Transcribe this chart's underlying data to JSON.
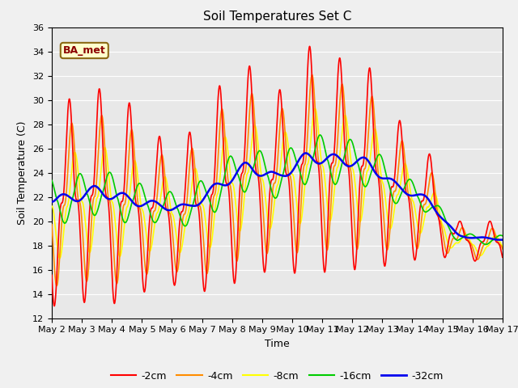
{
  "title": "Soil Temperatures Set C",
  "xlabel": "Time",
  "ylabel": "Soil Temperature (C)",
  "ylim": [
    12,
    36
  ],
  "yticks": [
    12,
    14,
    16,
    18,
    20,
    22,
    24,
    26,
    28,
    30,
    32,
    34,
    36
  ],
  "x_labels": [
    "May 2",
    "May 3",
    "May 4",
    "May 5",
    "May 6",
    "May 7",
    "May 8",
    "May 9",
    "May 10",
    "May 11",
    "May 12",
    "May 13",
    "May 14",
    "May 15",
    "May 16",
    "May 17"
  ],
  "annotation": "BA_met",
  "series": {
    "-2cm": {
      "color": "#FF0000",
      "lw": 1.2
    },
    "-4cm": {
      "color": "#FF8C00",
      "lw": 1.2
    },
    "-8cm": {
      "color": "#FFFF00",
      "lw": 1.2
    },
    "-16cm": {
      "color": "#00CC00",
      "lw": 1.2
    },
    "-32cm": {
      "color": "#0000EE",
      "lw": 1.8
    }
  },
  "background_color": "#E8E8E8",
  "grid_color": "#FFFFFF",
  "n_days": 15,
  "points_per_day": 144
}
